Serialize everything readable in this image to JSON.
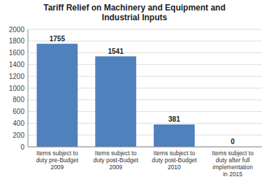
{
  "chart_data": {
    "type": "bar",
    "title": "Tariff Relief on Machinery and Equipment and\nIndustrial Inputs",
    "categories": [
      "Items subject to\nduty pre-Budget\n2009",
      "Items subject to\nduty post-Budget\n2009",
      "Items subject to\nduty post-Budget\n2010",
      "Items subject to\nduty after full\nimplementation\nin 2015"
    ],
    "values": [
      1755,
      1541,
      381,
      0
    ],
    "color": "#4F81BD",
    "ylim": [
      0,
      2000
    ],
    "yticks": [
      0,
      200,
      400,
      600,
      800,
      1000,
      1200,
      1400,
      1600,
      1800,
      2000
    ],
    "grid": true,
    "data_labels": true
  }
}
